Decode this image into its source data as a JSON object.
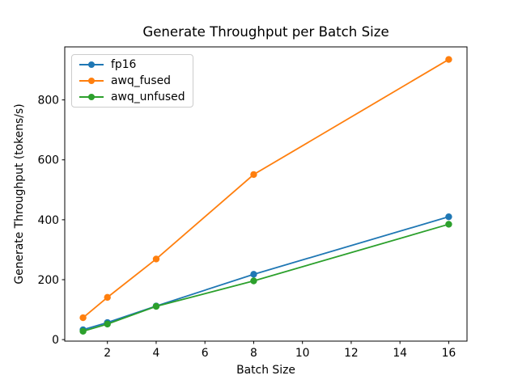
{
  "chart_data": {
    "type": "line",
    "title": "Generate Throughput per Batch Size",
    "xlabel": "Batch Size",
    "ylabel": "Generate Throughput (tokens/s)",
    "x": [
      1,
      2,
      4,
      8,
      16
    ],
    "series": [
      {
        "name": "fp16",
        "color": "#1f77b4",
        "values": [
          33,
          57,
          112,
          218,
          410
        ]
      },
      {
        "name": "awq_fused",
        "color": "#ff7f0e",
        "values": [
          73,
          141,
          269,
          551,
          935
        ]
      },
      {
        "name": "awq_unfused",
        "color": "#2ca02c",
        "values": [
          28,
          52,
          111,
          196,
          385
        ]
      }
    ],
    "xticks": [
      2,
      4,
      6,
      8,
      10,
      12,
      14,
      16
    ],
    "yticks": [
      0,
      200,
      400,
      600,
      800
    ],
    "xlim": [
      0.25,
      16.75
    ],
    "ylim": [
      -5,
      977
    ],
    "grid": false,
    "legend_position": "upper left",
    "marker": "o",
    "background": "#ffffff",
    "axis_color": "#000000",
    "legend_border_color": "#cccccc"
  }
}
